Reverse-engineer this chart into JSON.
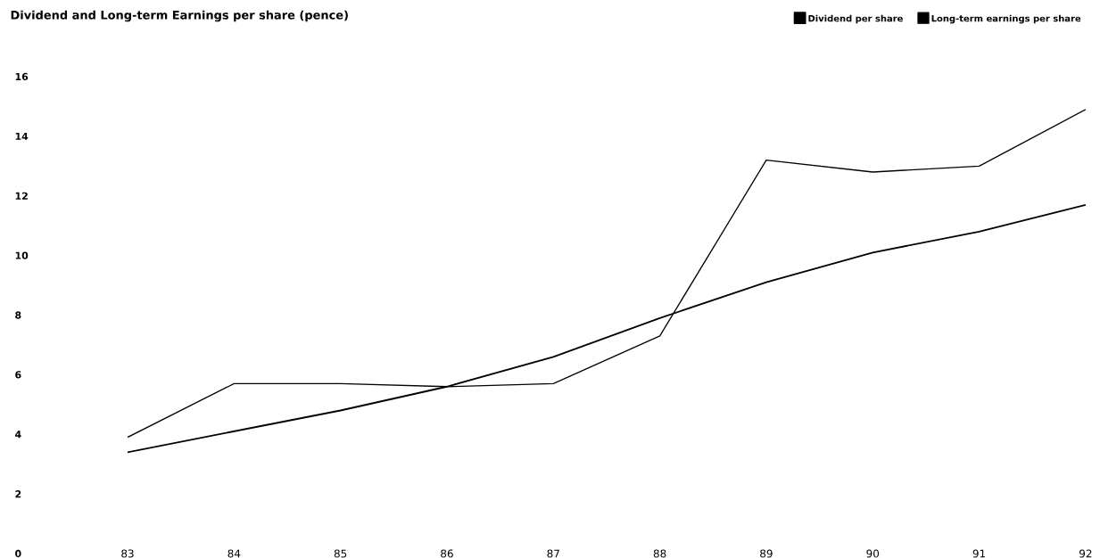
{
  "chart_data": {
    "type": "line",
    "title": "Dividend and Long-term Earnings per share (pence)",
    "categories": [
      "83",
      "84",
      "85",
      "86",
      "87",
      "88",
      "89",
      "90",
      "91",
      "92"
    ],
    "series": [
      {
        "name": "Dividend per share",
        "color": "#000000",
        "values": [
          3.4,
          4.1,
          4.8,
          5.6,
          6.6,
          7.9,
          9.1,
          10.1,
          10.8,
          11.7
        ]
      },
      {
        "name": "Long-term earnings per share",
        "color": "#000000",
        "values": [
          3.9,
          5.7,
          5.7,
          5.6,
          5.7,
          7.3,
          13.2,
          12.8,
          13.0,
          14.9
        ]
      }
    ],
    "ylim": [
      0,
      16
    ],
    "yticks": [
      0,
      2,
      4,
      6,
      8,
      10,
      12,
      14,
      16
    ],
    "legend": "top right"
  }
}
